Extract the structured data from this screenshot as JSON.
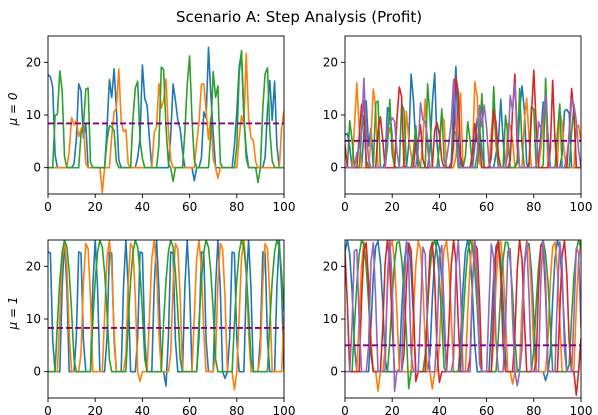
{
  "figure": {
    "title": "Scenario A: Step Analysis (Profit)",
    "row_labels": [
      "μ = 0",
      "μ = 1"
    ]
  },
  "colors": {
    "palette": [
      "#1f77b4",
      "#ff7f0e",
      "#2ca02c",
      "#d62728",
      "#9467bd"
    ],
    "reference_line": "#800080"
  },
  "chart_data": [
    {
      "type": "line",
      "panel": "top-left",
      "xlim": [
        0,
        100
      ],
      "ylim": [
        -5,
        25
      ],
      "xticks": [
        0,
        20,
        40,
        60,
        80,
        100
      ],
      "yticks": [
        0,
        10,
        20
      ],
      "grid": false,
      "n_series": 3,
      "series_peak": 23.5,
      "series_min": -5,
      "reference_line": {
        "y": 8.4,
        "style": "dashed"
      }
    },
    {
      "type": "line",
      "panel": "top-right",
      "xlim": [
        0,
        100
      ],
      "ylim": [
        -5,
        25
      ],
      "xticks": [
        0,
        20,
        40,
        60,
        80,
        100
      ],
      "yticks": [
        0,
        10,
        20
      ],
      "grid": false,
      "n_series": 5,
      "series_peak": 19.5,
      "series_min": 0,
      "reference_line": {
        "y": 5.1,
        "style": "dashed"
      }
    },
    {
      "type": "line",
      "panel": "bottom-left",
      "xlim": [
        0,
        100
      ],
      "ylim": [
        -5,
        25
      ],
      "xticks": [
        0,
        20,
        40,
        60,
        80,
        100
      ],
      "yticks": [
        0,
        10,
        20
      ],
      "grid": false,
      "n_series": 3,
      "series_peak": 25,
      "series_min": -4,
      "reference_line": {
        "y": 8.3,
        "style": "dashed"
      }
    },
    {
      "type": "line",
      "panel": "bottom-right",
      "xlim": [
        0,
        100
      ],
      "ylim": [
        -5,
        25
      ],
      "xticks": [
        0,
        20,
        40,
        60,
        80,
        100
      ],
      "yticks": [
        0,
        10,
        20
      ],
      "grid": false,
      "n_series": 5,
      "series_peak": 25,
      "series_min": -5,
      "reference_line": {
        "y": 5.0,
        "style": "dashed"
      }
    }
  ]
}
